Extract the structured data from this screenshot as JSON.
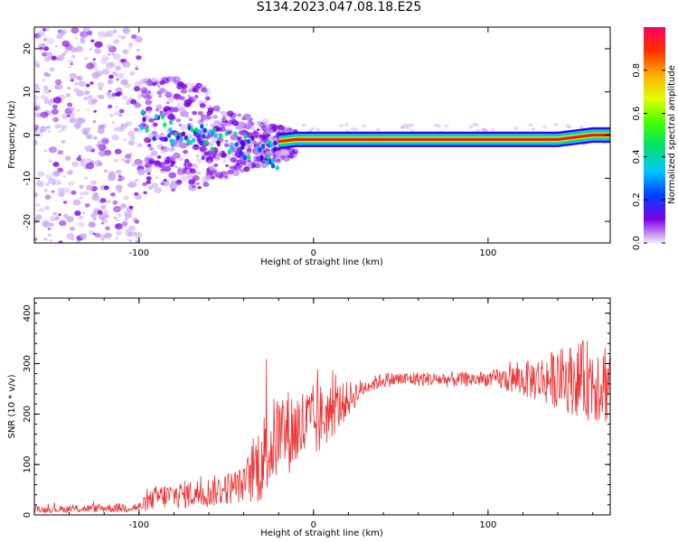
{
  "title": "S134.2023.047.08.18.E25",
  "colors": {
    "snr_line": "#ee3333",
    "ridge": "#ee1a1a",
    "scatter": "#7a00e6",
    "scatter_light": "#c9a6f5"
  },
  "chart_data": [
    {
      "type": "heatmap",
      "title": "",
      "xlabel": "Height of straight line (km)",
      "ylabel": "Frequency (Hz)",
      "xlim": [
        -160,
        170
      ],
      "ylim": [
        -25,
        25
      ],
      "x_ticks": [
        -100,
        0,
        100
      ],
      "x_tick_labels": [
        "-100",
        "0",
        "100"
      ],
      "y_ticks": [
        -20,
        -10,
        0,
        10,
        20
      ],
      "y_tick_labels": [
        "-20",
        "-10",
        "0",
        "10",
        "20"
      ],
      "ridge": {
        "x": [
          -20,
          -10,
          0,
          20,
          50,
          80,
          100,
          120,
          140,
          160,
          170
        ],
        "y": [
          -1.5,
          -1,
          -1,
          -1,
          -1,
          -1,
          -1,
          -1,
          -1,
          0,
          0
        ]
      },
      "colorbar": {
        "label": "Normalized spectral amplitude",
        "ticks": [
          0.0,
          0.2,
          0.4,
          0.6,
          0.8
        ],
        "tick_labels": [
          "0.0",
          "0.2",
          "0.4",
          "0.6",
          "0.8"
        ],
        "colors": [
          "#f3eafd",
          "#7a00e6",
          "#0040ff",
          "#00c8ff",
          "#00e070",
          "#40ff00",
          "#e0ff00",
          "#ffb000",
          "#ff3000",
          "#ff0060"
        ]
      }
    },
    {
      "type": "line",
      "title": "",
      "xlabel": "Height of straight line (km)",
      "ylabel": "SNR (10 * v/v)",
      "xlim": [
        -160,
        170
      ],
      "ylim": [
        0,
        430
      ],
      "x_ticks": [
        -100,
        0,
        100
      ],
      "x_tick_labels": [
        "-100",
        "0",
        "100"
      ],
      "y_ticks": [
        0,
        100,
        200,
        300,
        400
      ],
      "y_tick_labels": [
        "0",
        "100",
        "200",
        "300",
        "400"
      ],
      "series": [
        {
          "name": "",
          "trend_x": [
            -160,
            -100,
            -90,
            -60,
            -40,
            -30,
            -20,
            0,
            20,
            30,
            40,
            60,
            80,
            100,
            120,
            140,
            160,
            170
          ],
          "trend_y": [
            10,
            15,
            35,
            45,
            60,
            110,
            160,
            180,
            230,
            255,
            268,
            270,
            268,
            270,
            268,
            270,
            268,
            265
          ],
          "noise_x": [
            -160,
            -100,
            -90,
            -40,
            -30,
            0,
            20,
            30,
            100,
            120,
            140,
            160,
            170
          ],
          "noise_y": [
            6,
            10,
            25,
            35,
            90,
            80,
            35,
            15,
            15,
            35,
            60,
            85,
            90
          ]
        }
      ]
    }
  ]
}
